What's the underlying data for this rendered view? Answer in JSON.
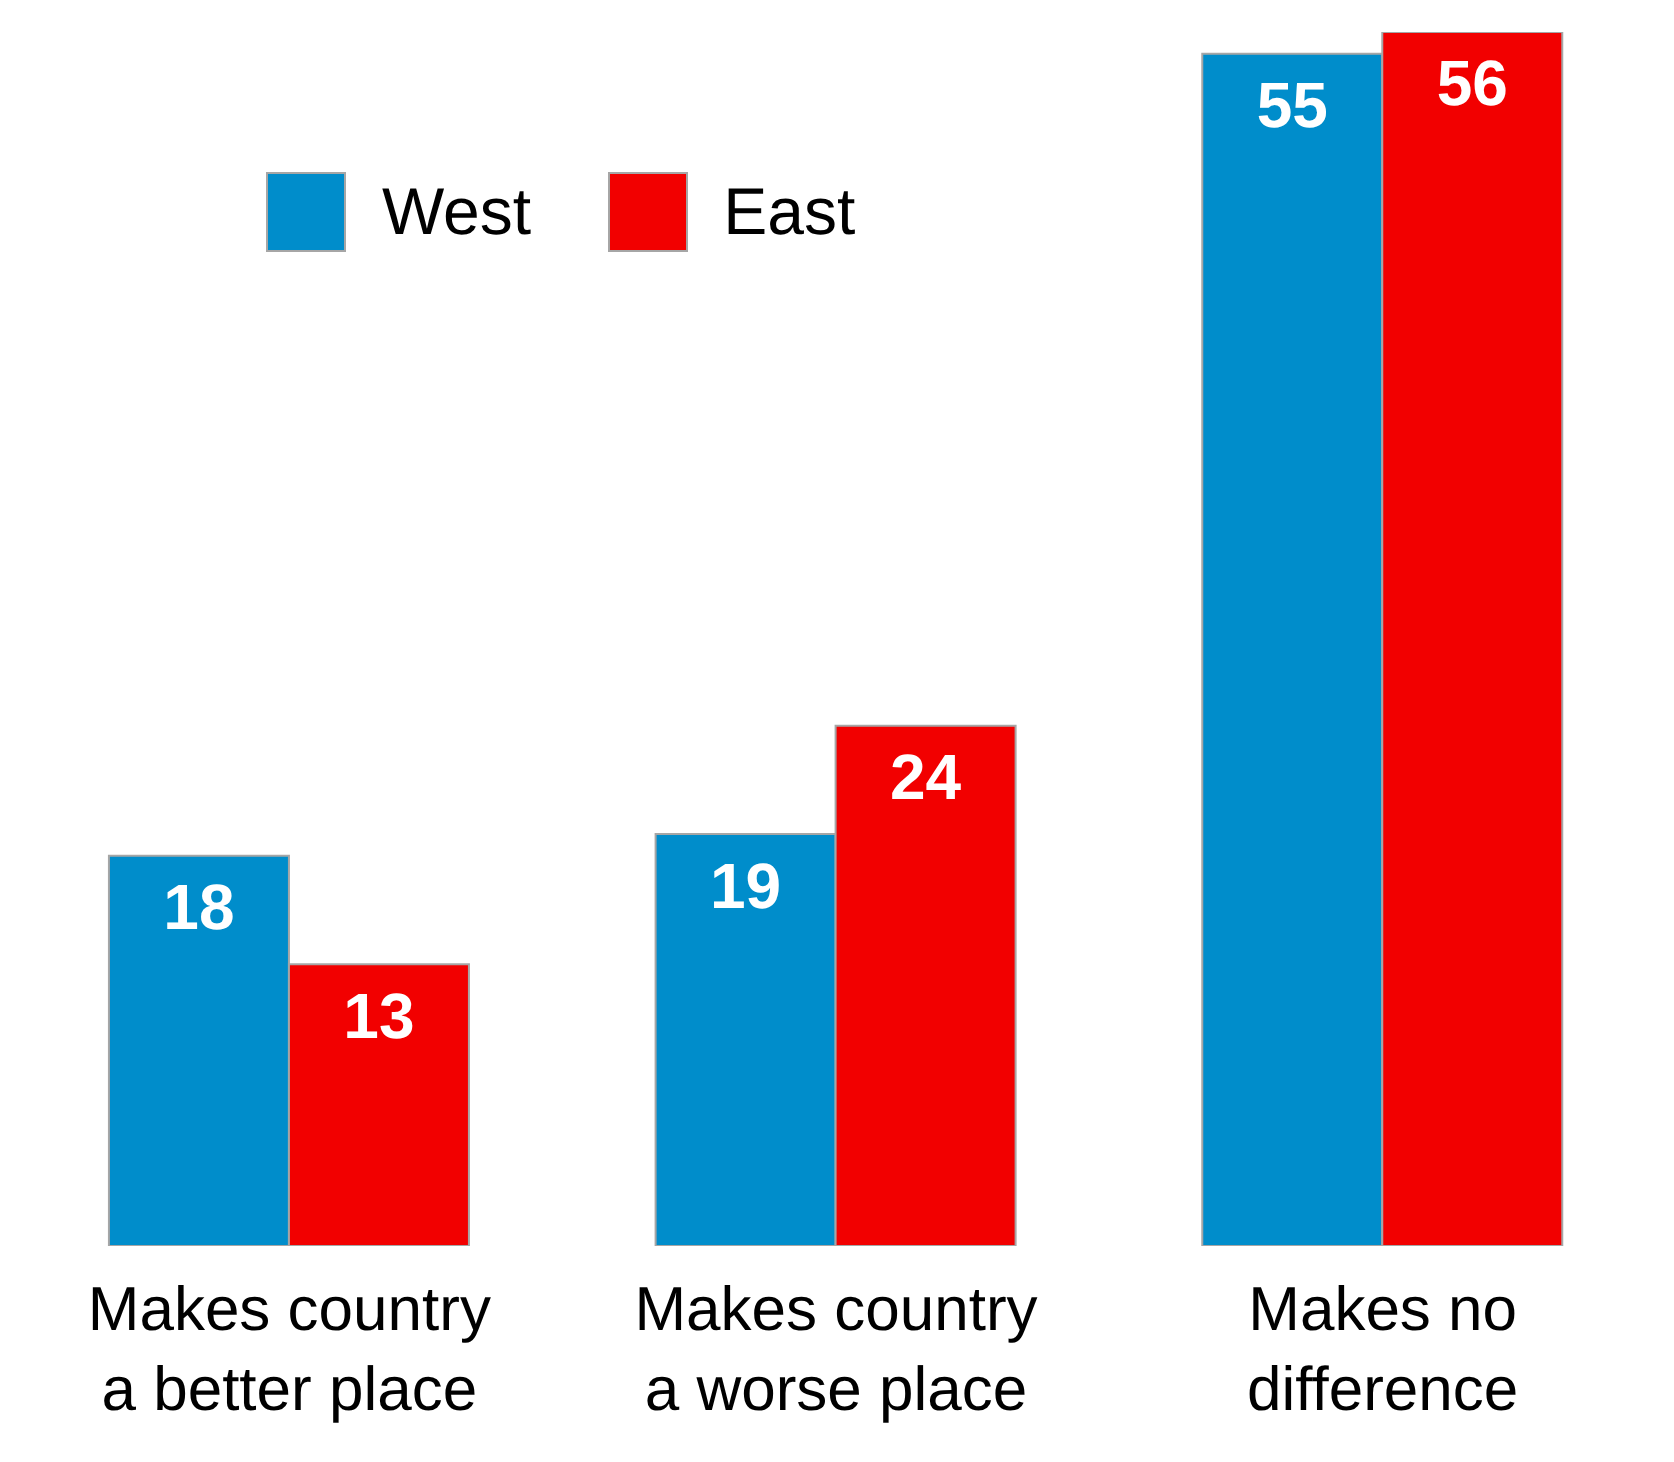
{
  "chart_data": {
    "type": "bar",
    "categories": [
      "Makes country a better place",
      "Makes country a worse place",
      "Makes no difference"
    ],
    "series": [
      {
        "name": "West",
        "color": "#008dcb",
        "values": [
          18,
          19,
          55
        ]
      },
      {
        "name": "East",
        "color": "#f20000",
        "values": [
          13,
          24,
          56
        ]
      }
    ],
    "data_labels": true,
    "legend": "top left"
  }
}
